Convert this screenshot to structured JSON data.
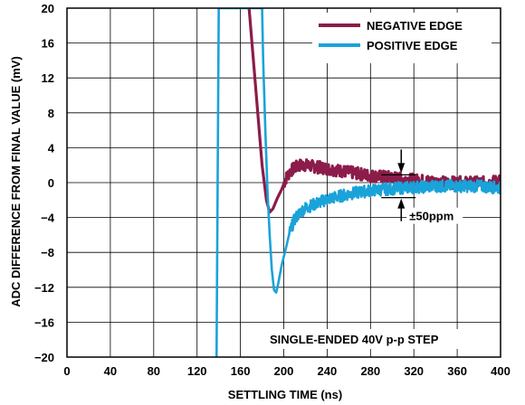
{
  "chart_data": {
    "type": "line",
    "xlabel": "SETTLING TIME (ns)",
    "ylabel": "ADC DIFFERENCE FROM FINAL VALUE (mV)",
    "xlim": [
      0,
      400
    ],
    "ylim": [
      -20,
      20
    ],
    "x_ticks": [
      "0",
      "40",
      "80",
      "120",
      "160",
      "200",
      "240",
      "280",
      "320",
      "360",
      "400"
    ],
    "y_ticks": [
      "20",
      "16",
      "12",
      "8",
      "4",
      "0",
      "−4",
      "−8",
      "−12",
      "−16",
      "−20"
    ],
    "grid": true,
    "legend_position": "top-right",
    "series": [
      {
        "name": "NEGATIVE EDGE",
        "color": "#8c1c4a",
        "points": [
          [
            168,
            20
          ],
          [
            172,
            14
          ],
          [
            176,
            8
          ],
          [
            180,
            2
          ],
          [
            184,
            -2
          ],
          [
            187,
            -3.4
          ],
          [
            190,
            -3
          ],
          [
            194,
            -1.8
          ],
          [
            198,
            -0.8
          ],
          [
            202,
            0.5
          ],
          [
            206,
            1.3
          ],
          [
            210,
            1.7
          ],
          [
            215,
            2.0
          ],
          [
            220,
            2.0
          ],
          [
            230,
            1.8
          ],
          [
            240,
            1.6
          ],
          [
            250,
            1.4
          ],
          [
            260,
            1.2
          ],
          [
            270,
            1.0
          ],
          [
            280,
            0.8
          ],
          [
            290,
            0.7
          ],
          [
            300,
            0.6
          ],
          [
            310,
            0.4
          ],
          [
            320,
            0.3
          ],
          [
            330,
            0.2
          ],
          [
            340,
            0.1
          ],
          [
            350,
            0
          ],
          [
            360,
            0
          ],
          [
            370,
            0
          ],
          [
            380,
            0
          ],
          [
            390,
            0
          ],
          [
            400,
            0.3
          ]
        ]
      },
      {
        "name": "POSITIVE EDGE",
        "color": "#1aa3d9",
        "points": [
          [
            138,
            -20
          ],
          [
            138.5,
            -10
          ],
          [
            139,
            0
          ],
          [
            139.5,
            10
          ],
          [
            140,
            20
          ],
          [
            180,
            20
          ],
          [
            181,
            14
          ],
          [
            183,
            6
          ],
          [
            185,
            -1
          ],
          [
            187,
            -6
          ],
          [
            189,
            -10
          ],
          [
            191,
            -12.3
          ],
          [
            193,
            -12.6
          ],
          [
            195,
            -11.5
          ],
          [
            198,
            -9.5
          ],
          [
            202,
            -7.5
          ],
          [
            206,
            -5.5
          ],
          [
            210,
            -4.2
          ],
          [
            215,
            -3.4
          ],
          [
            220,
            -2.9
          ],
          [
            230,
            -2.4
          ],
          [
            240,
            -1.9
          ],
          [
            250,
            -1.6
          ],
          [
            260,
            -1.3
          ],
          [
            270,
            -1.1
          ],
          [
            280,
            -0.9
          ],
          [
            290,
            -0.8
          ],
          [
            300,
            -0.7
          ],
          [
            310,
            -0.6
          ],
          [
            320,
            -0.5
          ],
          [
            330,
            -0.5
          ],
          [
            340,
            -0.4
          ],
          [
            350,
            -0.4
          ],
          [
            360,
            -0.4
          ],
          [
            380,
            -0.4
          ],
          [
            400,
            -0.6
          ]
        ]
      }
    ],
    "annotations": [
      {
        "text": "±50ppm",
        "kind": "band-marker",
        "x": 300,
        "y_top": 1.0,
        "y_bottom": -1.0
      },
      {
        "text": "SINGLE-ENDED 40V p-p STEP",
        "kind": "label"
      }
    ]
  }
}
